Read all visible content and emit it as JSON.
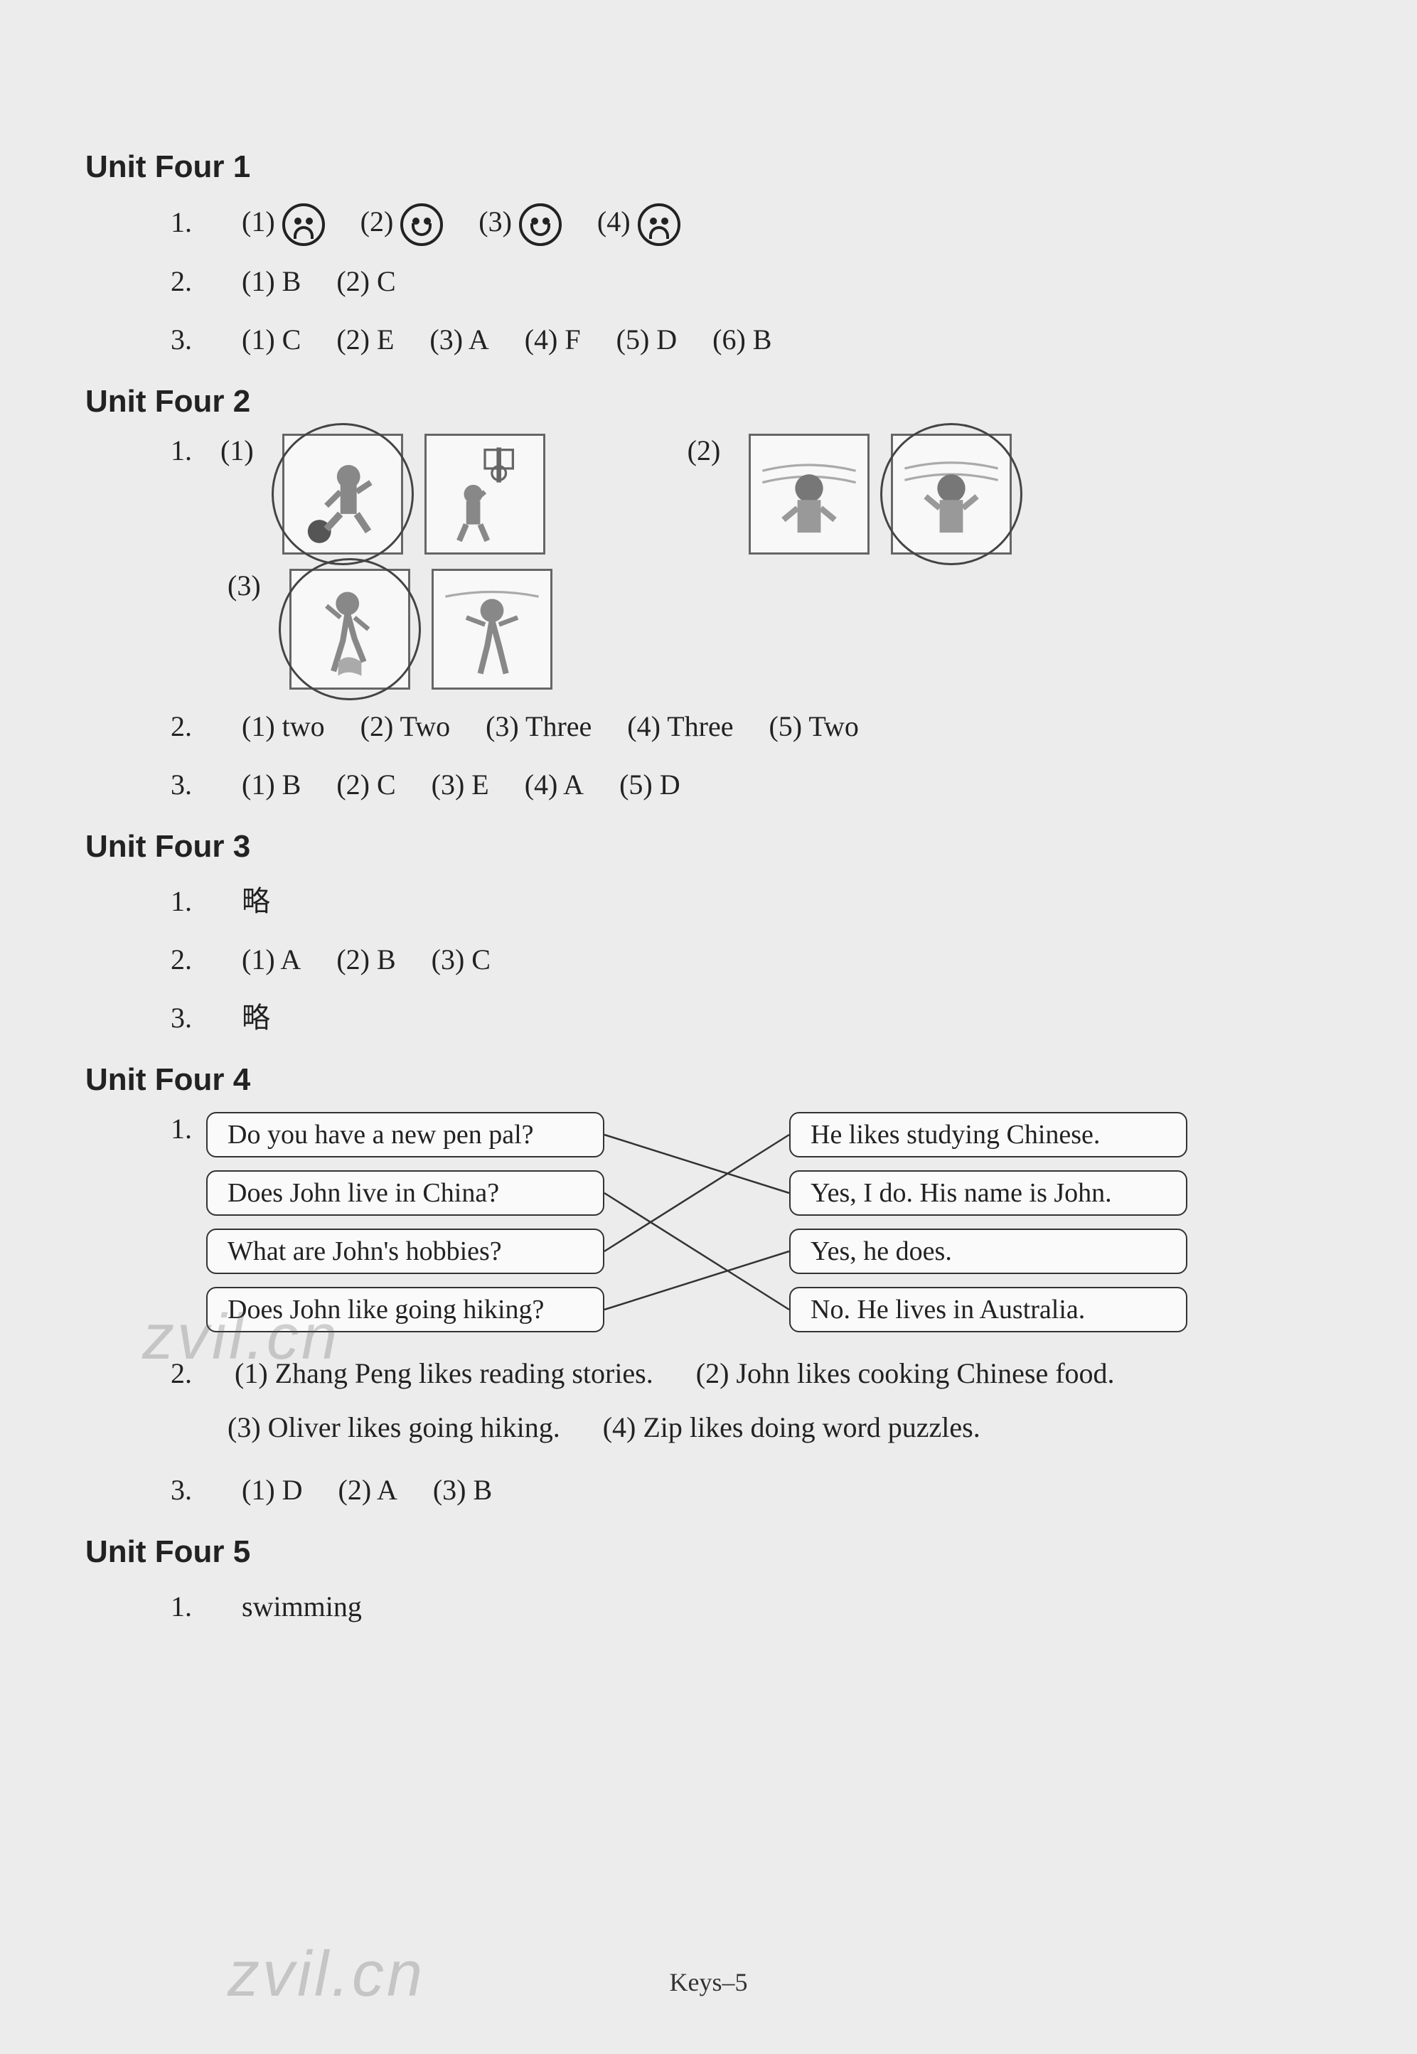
{
  "colors": {
    "bg": "#ececec",
    "text": "#222222",
    "border": "#333333",
    "box_bg": "#fafafa"
  },
  "typography": {
    "title_font": "Arial",
    "body_font": "Times New Roman",
    "title_size_pt": 33,
    "body_size_pt": 30
  },
  "units": {
    "u1": {
      "title": "Unit Four 1",
      "q1": {
        "num": "1.",
        "items": [
          {
            "label": "(1)",
            "face": "sad"
          },
          {
            "label": "(2)",
            "face": "happy"
          },
          {
            "label": "(3)",
            "face": "happy"
          },
          {
            "label": "(4)",
            "face": "sad"
          }
        ]
      },
      "q2": {
        "num": "2.",
        "items": [
          "(1) B",
          "(2) C"
        ]
      },
      "q3": {
        "num": "3.",
        "items": [
          "(1) C",
          "(2) E",
          "(3) A",
          "(4) F",
          "(5) D",
          "(6) B"
        ]
      }
    },
    "u2": {
      "title": "Unit Four 2",
      "q1": {
        "num": "1.",
        "groups": [
          {
            "label": "(1)",
            "pics": [
              {
                "kind": "soccer",
                "circled": true
              },
              {
                "kind": "basketball",
                "circled": false
              }
            ]
          },
          {
            "label": "(2)",
            "pics": [
              {
                "kind": "boy-music",
                "circled": false
              },
              {
                "kind": "boy-music2",
                "circled": true
              }
            ]
          },
          {
            "label": "(3)",
            "pics": [
              {
                "kind": "dance1",
                "circled": true
              },
              {
                "kind": "dance2",
                "circled": false
              }
            ]
          }
        ]
      },
      "q2": {
        "num": "2.",
        "items": [
          "(1) two",
          "(2) Two",
          "(3) Three",
          "(4) Three",
          "(5) Two"
        ]
      },
      "q3": {
        "num": "3.",
        "items": [
          "(1) B",
          "(2) C",
          "(3) E",
          "(4) A",
          "(5) D"
        ]
      }
    },
    "u3": {
      "title": "Unit Four 3",
      "q1": {
        "num": "1.",
        "text": "略"
      },
      "q2": {
        "num": "2.",
        "items": [
          "(1) A",
          "(2) B",
          "(3) C"
        ]
      },
      "q3": {
        "num": "3.",
        "text": "略"
      }
    },
    "u4": {
      "title": "Unit Four 4",
      "q1": {
        "num": "1.",
        "left": [
          "Do you have a new pen pal?",
          "Does John live in China?",
          "What are John's hobbies?",
          "Does John like going hiking?"
        ],
        "right": [
          "He likes studying Chinese.",
          "Yes, I do. His name is John.",
          "Yes, he does.",
          "No. He lives in Australia."
        ],
        "edges": [
          [
            0,
            1
          ],
          [
            1,
            3
          ],
          [
            2,
            0
          ],
          [
            3,
            2
          ]
        ],
        "bubble_width_left": 560,
        "bubble_width_right": 600,
        "bubble_height": 64,
        "gap": 18,
        "col_gap": 260
      },
      "q2": {
        "num": "2.",
        "items": [
          "(1) Zhang Peng likes reading stories.",
          "(2) John likes cooking Chinese food.",
          "(3) Oliver likes going hiking.",
          "(4) Zip likes doing word puzzles."
        ]
      },
      "q3": {
        "num": "3.",
        "items": [
          "(1) D",
          "(2) A",
          "(3) B"
        ]
      }
    },
    "u5": {
      "title": "Unit Four 5",
      "q1": {
        "num": "1.",
        "text": "swimming"
      }
    }
  },
  "footer": "Keys–5",
  "watermark": "zvil.cn"
}
